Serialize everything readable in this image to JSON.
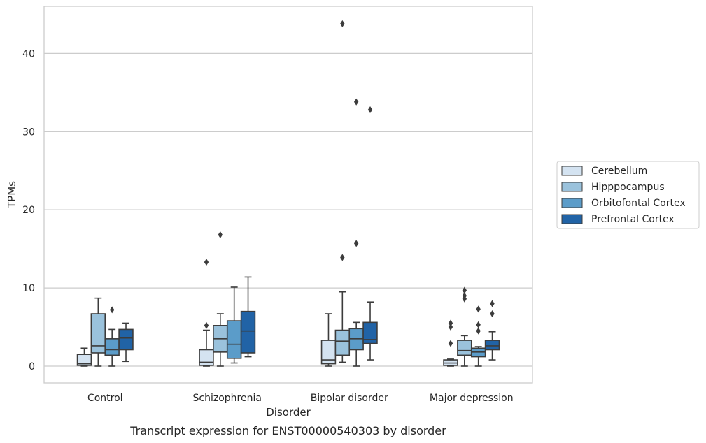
{
  "chart_data": {
    "type": "box",
    "title": "Transcript expression for ENST00000540303 by disorder",
    "xlabel": "Disorder",
    "ylabel": "TPMs",
    "ylim": [
      -2,
      46
    ],
    "yticks": [
      0,
      10,
      20,
      30,
      40
    ],
    "grid": "horizontal",
    "legend_position": "right",
    "categories": [
      "Control",
      "Schizophrenia",
      "Bipolar disorder",
      "Major depression"
    ],
    "series": [
      {
        "name": "Cerebellum",
        "color": "#d4e3f1",
        "boxes": [
          {
            "whislo": 0,
            "q1": 0.1,
            "med": 0.3,
            "q3": 1.5,
            "whishi": 2.3,
            "fliers": []
          },
          {
            "whislo": 0,
            "q1": 0.1,
            "med": 0.5,
            "q3": 2.1,
            "whishi": 4.6,
            "fliers": [
              5.2,
              13.3
            ]
          },
          {
            "whislo": 0,
            "q1": 0.3,
            "med": 0.8,
            "q3": 3.3,
            "whishi": 6.7,
            "fliers": []
          },
          {
            "whislo": 0,
            "q1": 0.1,
            "med": 0.4,
            "q3": 0.8,
            "whishi": 0.9,
            "fliers": [
              2.9,
              5.0,
              5.5
            ]
          }
        ]
      },
      {
        "name": "Hipppocampus",
        "color": "#9ac2dc",
        "boxes": [
          {
            "whislo": 0,
            "q1": 1.7,
            "med": 2.6,
            "q3": 6.7,
            "whishi": 8.7,
            "fliers": []
          },
          {
            "whislo": 0,
            "q1": 1.8,
            "med": 3.5,
            "q3": 5.2,
            "whishi": 6.7,
            "fliers": [
              16.8
            ]
          },
          {
            "whislo": 0.5,
            "q1": 1.4,
            "med": 3.2,
            "q3": 4.6,
            "whishi": 9.5,
            "fliers": [
              13.9,
              43.8
            ]
          },
          {
            "whislo": 0,
            "q1": 1.4,
            "med": 2.0,
            "q3": 3.3,
            "whishi": 3.9,
            "fliers": [
              8.6,
              9.0,
              9.7
            ]
          }
        ]
      },
      {
        "name": "Orbitofontal Cortex",
        "color": "#5b9cc9",
        "boxes": [
          {
            "whislo": 0,
            "q1": 1.4,
            "med": 2.1,
            "q3": 3.5,
            "whishi": 4.7,
            "fliers": [
              7.2
            ]
          },
          {
            "whislo": 0.4,
            "q1": 1.0,
            "med": 2.8,
            "q3": 5.8,
            "whishi": 10.1,
            "fliers": []
          },
          {
            "whislo": 0,
            "q1": 2.1,
            "med": 3.5,
            "q3": 4.8,
            "whishi": 5.6,
            "fliers": [
              15.7,
              33.8
            ]
          },
          {
            "whislo": 0,
            "q1": 1.2,
            "med": 1.8,
            "q3": 2.3,
            "whishi": 2.5,
            "fliers": [
              4.5,
              5.3,
              7.3
            ]
          }
        ]
      },
      {
        "name": "Prefrontal Cortex",
        "color": "#2163a6",
        "boxes": [
          {
            "whislo": 0.6,
            "q1": 2.1,
            "med": 3.6,
            "q3": 4.7,
            "whishi": 5.5,
            "fliers": []
          },
          {
            "whislo": 1.2,
            "q1": 1.7,
            "med": 4.5,
            "q3": 7.0,
            "whishi": 11.4,
            "fliers": []
          },
          {
            "whislo": 0.8,
            "q1": 2.9,
            "med": 3.4,
            "q3": 5.6,
            "whishi": 8.2,
            "fliers": [
              32.8
            ]
          },
          {
            "whislo": 0.8,
            "q1": 2.1,
            "med": 2.6,
            "q3": 3.3,
            "whishi": 4.4,
            "fliers": [
              6.7,
              8.0
            ]
          }
        ]
      }
    ]
  }
}
